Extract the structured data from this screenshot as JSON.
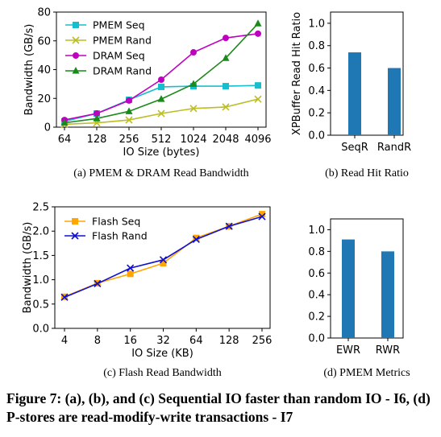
{
  "figure_caption": "Figure 7: (a), (b), and (c) Sequential IO faster than random IO - I6, (d) P-stores are read-modify-write transactions - I7",
  "chart_data": [
    {
      "type": "line",
      "caption": "(a)  PMEM & DRAM Read Bandwidth",
      "xlabel": "IO Size (bytes)",
      "ylabel": "Bandwidth (GB/s)",
      "categories": [
        "64",
        "128",
        "256",
        "512",
        "1024",
        "2048",
        "4096"
      ],
      "ylim": [
        0,
        80
      ],
      "yticks": [
        0,
        20,
        40,
        60,
        80
      ],
      "grid": false,
      "legend": "top-left",
      "series": [
        {
          "name": "PMEM Seq",
          "color": "#17becf",
          "marker": "square",
          "values": [
            4,
            9.5,
            19,
            28,
            28.5,
            28.5,
            29
          ]
        },
        {
          "name": "PMEM Rand",
          "color": "#bcbd22",
          "marker": "x",
          "values": [
            2,
            3,
            5,
            9.5,
            13,
            14,
            19.5
          ]
        },
        {
          "name": "DRAM Seq",
          "color": "#c000c0",
          "marker": "circle",
          "values": [
            5,
            9.5,
            18.5,
            33,
            52,
            62,
            65
          ]
        },
        {
          "name": "DRAM Rand",
          "color": "#1a8a1a",
          "marker": "triangle",
          "values": [
            3,
            6,
            11,
            19.5,
            30,
            48,
            72
          ]
        }
      ]
    },
    {
      "type": "bar",
      "caption": "(b)  Read Hit Ratio",
      "ylabel": "XPBuffer Read Hit Ratio",
      "categories": [
        "SeqR",
        "RandR"
      ],
      "values": [
        0.74,
        0.6
      ],
      "ylim": [
        0,
        1.1
      ],
      "yticks": [
        "0.0",
        "0.2",
        "0.4",
        "0.6",
        "0.8",
        "1.0"
      ],
      "color": "#1f77b4"
    },
    {
      "type": "line",
      "caption": "(c)  Flash Read Bandwidth",
      "xlabel": "IO Size (KB)",
      "ylabel": "Bandwidth (GB/s)",
      "categories": [
        "4",
        "8",
        "16",
        "32",
        "64",
        "128",
        "256"
      ],
      "ylim": [
        0,
        2.5
      ],
      "yticks": [
        "0.0",
        "0.5",
        "1.0",
        "1.5",
        "2.0",
        "2.5"
      ],
      "legend": "top-left",
      "series": [
        {
          "name": "Flash Seq",
          "color": "#ffa500",
          "marker": "square",
          "values": [
            0.65,
            0.93,
            1.12,
            1.34,
            1.86,
            2.1,
            2.35
          ]
        },
        {
          "name": "Flash Rand",
          "color": "#1010d0",
          "marker": "x",
          "values": [
            0.64,
            0.92,
            1.24,
            1.41,
            1.83,
            2.1,
            2.3
          ]
        }
      ]
    },
    {
      "type": "bar",
      "caption": "(d)  PMEM Metrics",
      "categories": [
        "EWR",
        "RWR"
      ],
      "values": [
        0.91,
        0.8
      ],
      "ylim": [
        0,
        1.1
      ],
      "yticks": [
        "0.0",
        "0.2",
        "0.4",
        "0.6",
        "0.8",
        "1.0"
      ],
      "color": "#1f77b4"
    }
  ]
}
